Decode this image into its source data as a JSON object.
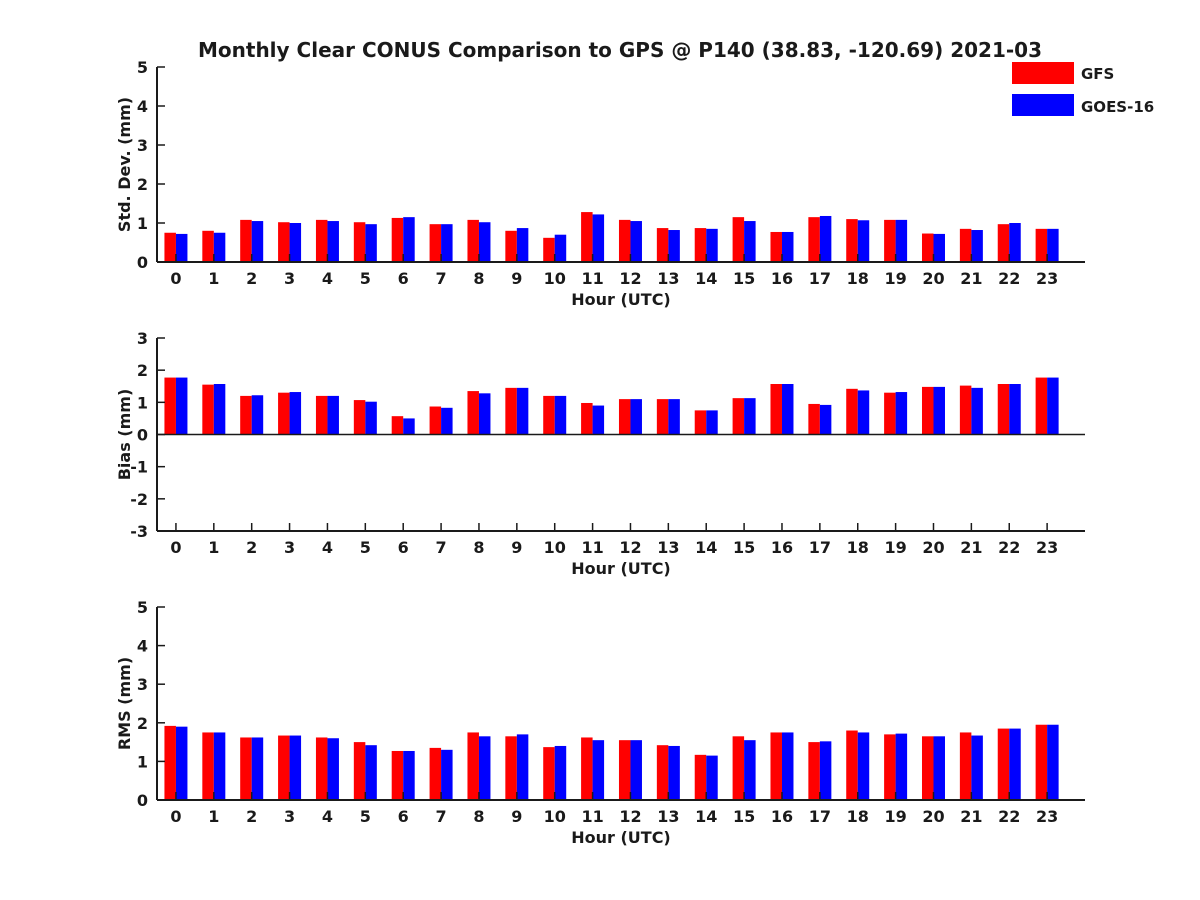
{
  "chart_data": {
    "title": "Monthly Clear CONUS Comparison to GPS @ P140 (38.83, -120.69) 2021-03",
    "legend": {
      "placement": "top-right",
      "entries": [
        {
          "name": "GFS",
          "color": "#ff0000"
        },
        {
          "name": "GOES-16",
          "color": "#0000ff"
        }
      ]
    },
    "colors": {
      "GFS": "#ff0000",
      "GOES-16": "#0000ff",
      "axis": "#1a1a1a"
    },
    "panels": [
      {
        "type": "bar",
        "ylabel": "Std. Dev. (mm)",
        "xlabel": "Hour (UTC)",
        "ylim": [
          0,
          5
        ],
        "yticks": [
          0,
          1,
          2,
          3,
          4,
          5
        ],
        "categories": [
          0,
          1,
          2,
          3,
          4,
          5,
          6,
          7,
          8,
          9,
          10,
          11,
          12,
          13,
          14,
          15,
          16,
          17,
          18,
          19,
          20,
          21,
          22,
          23
        ],
        "series": [
          {
            "name": "GFS",
            "values": [
              0.75,
              0.8,
              1.08,
              1.02,
              1.08,
              1.02,
              1.13,
              0.97,
              1.08,
              0.8,
              0.62,
              1.28,
              1.08,
              0.87,
              0.87,
              1.15,
              0.77,
              1.15,
              1.1,
              1.08,
              0.73,
              0.85,
              0.97,
              0.85
            ]
          },
          {
            "name": "GOES-16",
            "values": [
              0.72,
              0.75,
              1.05,
              1.0,
              1.05,
              0.97,
              1.15,
              0.97,
              1.02,
              0.87,
              0.7,
              1.22,
              1.05,
              0.82,
              0.85,
              1.05,
              0.77,
              1.18,
              1.07,
              1.08,
              0.72,
              0.82,
              1.0,
              0.85
            ]
          }
        ]
      },
      {
        "type": "bar",
        "ylabel": "Bias (mm)",
        "xlabel": "Hour (UTC)",
        "ylim": [
          -3,
          3
        ],
        "yticks": [
          -3,
          -2,
          -1,
          0,
          1,
          2,
          3
        ],
        "categories": [
          0,
          1,
          2,
          3,
          4,
          5,
          6,
          7,
          8,
          9,
          10,
          11,
          12,
          13,
          14,
          15,
          16,
          17,
          18,
          19,
          20,
          21,
          22,
          23
        ],
        "series": [
          {
            "name": "GFS",
            "values": [
              1.77,
              1.55,
              1.2,
              1.3,
              1.2,
              1.07,
              0.57,
              0.87,
              1.35,
              1.45,
              1.2,
              0.98,
              1.1,
              1.1,
              0.75,
              1.13,
              1.57,
              0.95,
              1.42,
              1.3,
              1.48,
              1.52,
              1.57,
              1.77
            ]
          },
          {
            "name": "GOES-16",
            "values": [
              1.77,
              1.57,
              1.22,
              1.32,
              1.2,
              1.02,
              0.5,
              0.83,
              1.28,
              1.45,
              1.2,
              0.9,
              1.1,
              1.1,
              0.75,
              1.13,
              1.57,
              0.92,
              1.37,
              1.32,
              1.48,
              1.45,
              1.57,
              1.77
            ]
          }
        ]
      },
      {
        "type": "bar",
        "ylabel": "RMS (mm)",
        "xlabel": "Hour (UTC)",
        "ylim": [
          0,
          5
        ],
        "yticks": [
          0,
          1,
          2,
          3,
          4,
          5
        ],
        "categories": [
          0,
          1,
          2,
          3,
          4,
          5,
          6,
          7,
          8,
          9,
          10,
          11,
          12,
          13,
          14,
          15,
          16,
          17,
          18,
          19,
          20,
          21,
          22,
          23
        ],
        "series": [
          {
            "name": "GFS",
            "values": [
              1.92,
              1.75,
              1.62,
              1.67,
              1.62,
              1.5,
              1.27,
              1.35,
              1.75,
              1.65,
              1.37,
              1.62,
              1.55,
              1.42,
              1.17,
              1.65,
              1.75,
              1.5,
              1.8,
              1.7,
              1.65,
              1.75,
              1.85,
              1.95
            ]
          },
          {
            "name": "GOES-16",
            "values": [
              1.9,
              1.75,
              1.62,
              1.67,
              1.6,
              1.42,
              1.27,
              1.3,
              1.65,
              1.7,
              1.4,
              1.55,
              1.55,
              1.4,
              1.15,
              1.55,
              1.75,
              1.52,
              1.75,
              1.72,
              1.65,
              1.67,
              1.85,
              1.95
            ]
          }
        ]
      }
    ]
  }
}
